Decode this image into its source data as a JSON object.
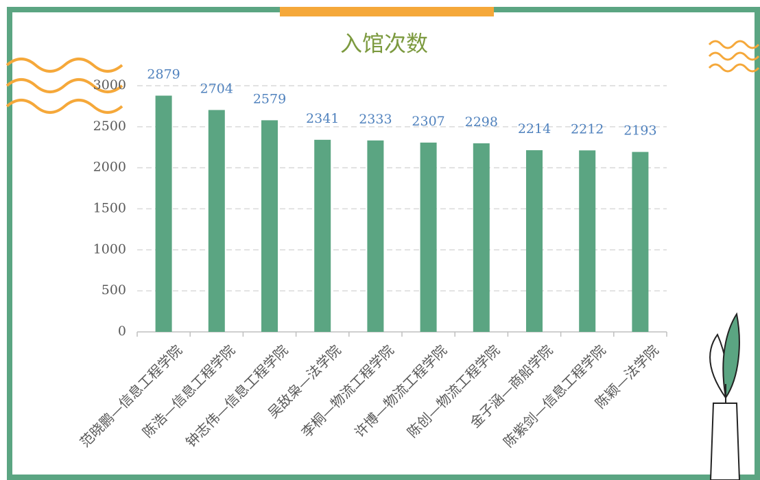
{
  "chart_data": {
    "type": "bar",
    "title": "入馆次数",
    "categories": [
      "范晓鹏—信息工程学院",
      "陈浩—信息工程学院",
      "钟志伟—信息工程学院",
      "吴敌枭—法学院",
      "李桐—物流工程学院",
      "许博—物流工程学院",
      "陈创—物流工程学院",
      "金子涵—商船学院",
      "陈紫剑—信息工程学院",
      "陈颖—法学院"
    ],
    "values": [
      2879,
      2704,
      2579,
      2341,
      2333,
      2307,
      2298,
      2214,
      2212,
      2193
    ],
    "color": "#5ba582",
    "ylim": [
      0,
      3000
    ],
    "yticks": [
      0,
      500,
      1000,
      1500,
      2000,
      2500,
      3000
    ],
    "grid": true
  }
}
